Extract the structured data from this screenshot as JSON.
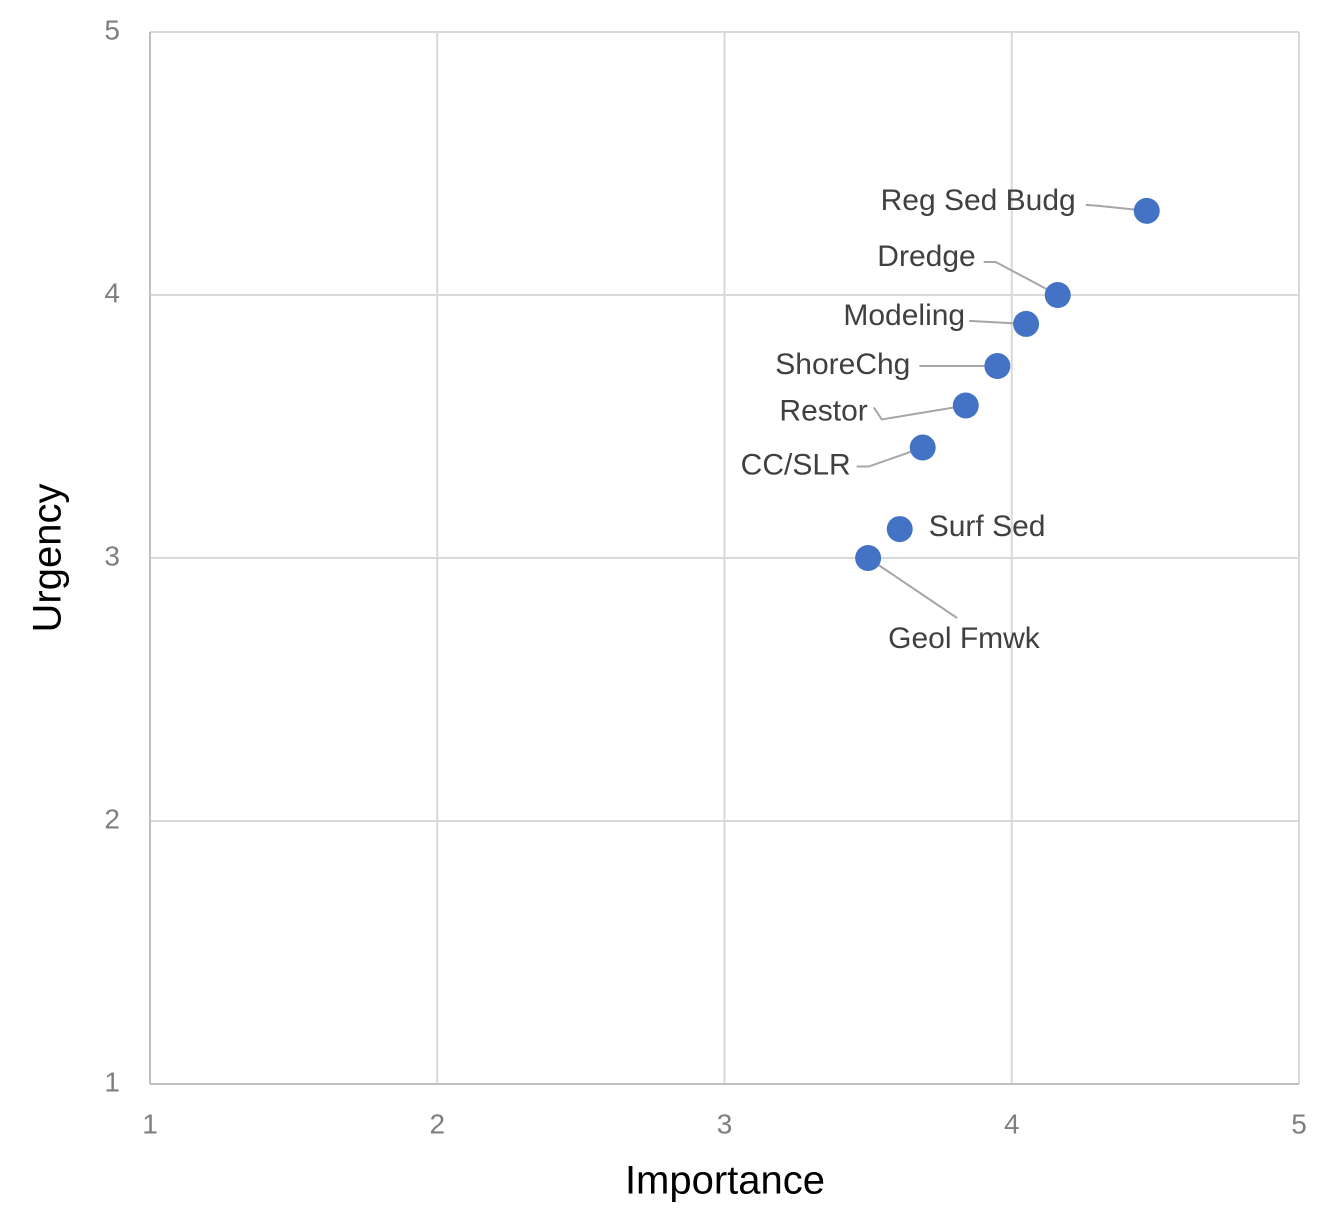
{
  "chart_data": {
    "type": "scatter",
    "x_label": "Importance",
    "y_label": "Urgency",
    "labels": [
      "Reg Sed Budg",
      "Dredge",
      "Modeling",
      "ShoreChg",
      "Restor",
      "CC/SLR",
      "Surf Sed",
      "Geol Fmwk"
    ],
    "x": [
      4.47,
      4.16,
      4.05,
      3.95,
      3.84,
      3.69,
      3.61,
      3.5
    ],
    "y": [
      4.32,
      4.0,
      3.89,
      3.73,
      3.58,
      3.42,
      3.11,
      3.0
    ],
    "color": "#4472c4",
    "xlim": [
      1,
      5
    ],
    "ylim": [
      1,
      5
    ],
    "xticks": [
      1,
      2,
      3,
      4,
      5
    ],
    "yticks": [
      1,
      2,
      3,
      4,
      5
    ],
    "grid": true
  }
}
